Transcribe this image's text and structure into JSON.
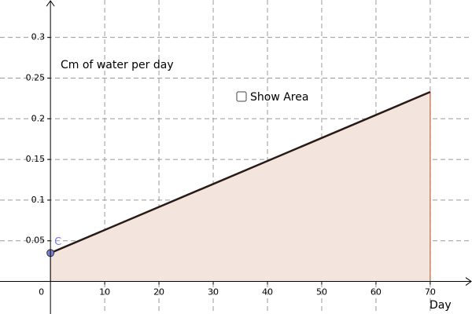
{
  "chart_data": {
    "type": "area",
    "title": "Cm of water per day",
    "x_label": "Day",
    "x": [
      0,
      70
    ],
    "values": [
      0.035,
      0.233
    ],
    "color": "#2b1a14",
    "fill": "#f4e4de",
    "edge": "#a0522d",
    "point": {
      "label": "C",
      "x": 0,
      "value": 0.035,
      "color": "#7d7ddc"
    },
    "xlim": [
      -9.3,
      77.7
    ],
    "ylim": [
      -0.04,
      0.346
    ],
    "xticks": [
      0,
      10,
      20,
      30,
      40,
      50,
      60,
      70
    ],
    "yticks": [
      0.05,
      0.1,
      0.15,
      0.2,
      0.25,
      0.3
    ],
    "grid": true
  },
  "controls": {
    "checkbox_label": "Show Area"
  }
}
